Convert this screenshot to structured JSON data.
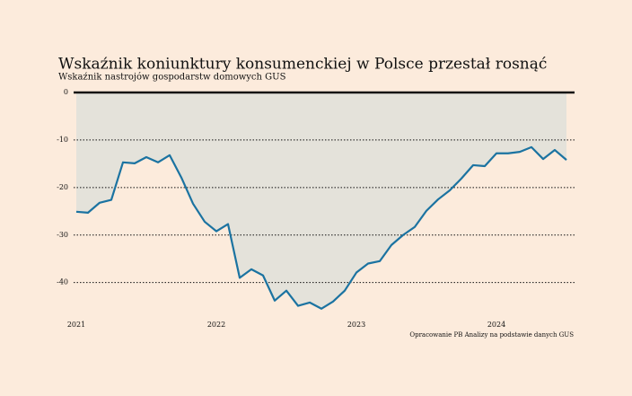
{
  "chart_data": {
    "type": "line",
    "title": "Wskaźnik koniunktury konsumenckiej w Polsce przestał rosnąć",
    "subtitle": "Wskaźnik nastrojów gospodarstw domowych GUS",
    "source": "Opracowanie PB Analizy na podstawie danych GUS",
    "categories": [
      "2021",
      null,
      null,
      null,
      null,
      null,
      null,
      null,
      null,
      null,
      null,
      null,
      "2022",
      null,
      null,
      null,
      null,
      null,
      null,
      null,
      null,
      null,
      null,
      null,
      "2023",
      null,
      null,
      null,
      null,
      null,
      null,
      null,
      null,
      null,
      null,
      null,
      "2024",
      null,
      null,
      null,
      null,
      null,
      null
    ],
    "values": [
      -25.1,
      -25.3,
      -23.2,
      -22.6,
      -14.7,
      -14.9,
      -13.6,
      -14.7,
      -13.2,
      -17.9,
      -23.4,
      -27.2,
      -29.2,
      -27.7,
      -39.0,
      -37.2,
      -38.5,
      -43.8,
      -41.7,
      -44.9,
      -44.2,
      -45.5,
      -44.0,
      -41.7,
      -37.9,
      -36.0,
      -35.5,
      -32.1,
      -30.0,
      -28.3,
      -24.9,
      -22.5,
      -20.6,
      -18.1,
      -15.3,
      -15.5,
      -12.8,
      -12.8,
      -12.5,
      -11.5,
      -14.0,
      -12.1,
      -14.2
    ],
    "color": "#1b73a1",
    "area_color": "#e4e2da",
    "ylim": [
      -48,
      0
    ],
    "yticks": [
      0,
      -10,
      -20,
      -30,
      -40
    ],
    "grid": true
  }
}
